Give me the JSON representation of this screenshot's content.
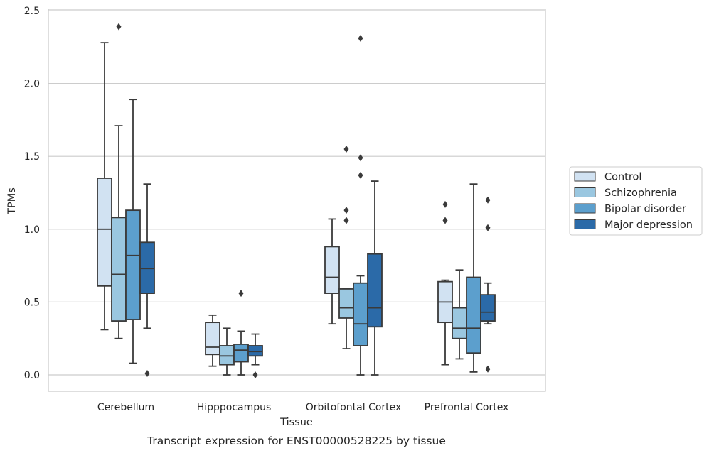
{
  "caption": "Transcript expression for ENST00000528225 by tissue",
  "chart_data": {
    "type": "box",
    "xlabel": "Tissue",
    "ylabel": "TPMs",
    "ylim": [
      -0.11,
      2.52
    ],
    "yticks": [
      "0.0",
      "0.5",
      "1.0",
      "1.5",
      "2.0",
      "2.5"
    ],
    "grid": "horizontal",
    "legend_position": "right",
    "categories": [
      "Cerebellum",
      "Hipppocampus",
      "Orbitofontal Cortex",
      "Prefrontal Cortex"
    ],
    "series": [
      {
        "name": "Control",
        "color": "#d1e2f2",
        "boxes": [
          {
            "whisker_low": 0.31,
            "q1": 0.61,
            "median": 1.0,
            "q3": 1.35,
            "whisker_high": 2.28,
            "outliers": []
          },
          {
            "whisker_low": 0.06,
            "q1": 0.14,
            "median": 0.19,
            "q3": 0.36,
            "whisker_high": 0.41,
            "outliers": []
          },
          {
            "whisker_low": 0.35,
            "q1": 0.56,
            "median": 0.67,
            "q3": 0.88,
            "whisker_high": 1.07,
            "outliers": []
          },
          {
            "whisker_low": 0.07,
            "q1": 0.36,
            "median": 0.5,
            "q3": 0.64,
            "whisker_high": 0.65,
            "outliers": [
              1.06,
              1.17
            ]
          }
        ]
      },
      {
        "name": "Schizophrenia",
        "color": "#9ac7e0",
        "boxes": [
          {
            "whisker_low": 0.25,
            "q1": 0.37,
            "median": 0.69,
            "q3": 1.08,
            "whisker_high": 1.71,
            "outliers": [
              2.39
            ]
          },
          {
            "whisker_low": 0.0,
            "q1": 0.07,
            "median": 0.13,
            "q3": 0.2,
            "whisker_high": 0.32,
            "outliers": []
          },
          {
            "whisker_low": 0.18,
            "q1": 0.39,
            "median": 0.46,
            "q3": 0.59,
            "whisker_high": 0.59,
            "outliers": [
              1.06,
              1.13,
              1.55
            ]
          },
          {
            "whisker_low": 0.11,
            "q1": 0.25,
            "median": 0.32,
            "q3": 0.46,
            "whisker_high": 0.72,
            "outliers": []
          }
        ]
      },
      {
        "name": "Bipolar disorder",
        "color": "#5c9fcd",
        "boxes": [
          {
            "whisker_low": 0.08,
            "q1": 0.38,
            "median": 0.82,
            "q3": 1.13,
            "whisker_high": 1.89,
            "outliers": []
          },
          {
            "whisker_low": 0.0,
            "q1": 0.09,
            "median": 0.17,
            "q3": 0.21,
            "whisker_high": 0.3,
            "outliers": [
              0.56
            ]
          },
          {
            "whisker_low": 0.0,
            "q1": 0.2,
            "median": 0.35,
            "q3": 0.63,
            "whisker_high": 0.68,
            "outliers": [
              1.37,
              1.49,
              2.31
            ]
          },
          {
            "whisker_low": 0.02,
            "q1": 0.15,
            "median": 0.32,
            "q3": 0.67,
            "whisker_high": 1.31,
            "outliers": []
          }
        ]
      },
      {
        "name": "Major depression",
        "color": "#2b6aa8",
        "boxes": [
          {
            "whisker_low": 0.32,
            "q1": 0.56,
            "median": 0.73,
            "q3": 0.91,
            "whisker_high": 1.31,
            "outliers": [
              0.01
            ]
          },
          {
            "whisker_low": 0.07,
            "q1": 0.13,
            "median": 0.16,
            "q3": 0.2,
            "whisker_high": 0.28,
            "outliers": [
              0.0
            ]
          },
          {
            "whisker_low": 0.0,
            "q1": 0.33,
            "median": 0.46,
            "q3": 0.83,
            "whisker_high": 1.33,
            "outliers": []
          },
          {
            "whisker_low": 0.35,
            "q1": 0.37,
            "median": 0.43,
            "q3": 0.55,
            "whisker_high": 0.63,
            "outliers": [
              0.04,
              1.01,
              1.2
            ]
          }
        ]
      }
    ]
  }
}
